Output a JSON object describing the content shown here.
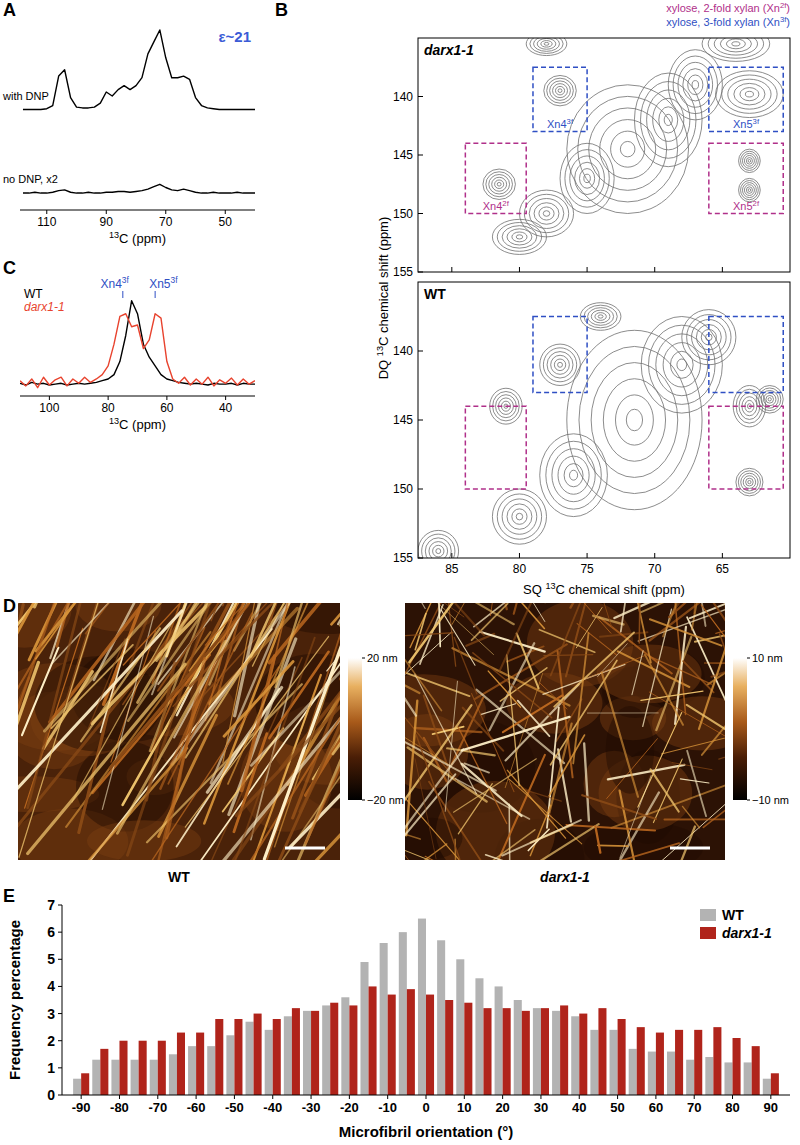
{
  "chart_data": [
    {
      "type": "line",
      "panel_label": "A",
      "annotation": "ε~21",
      "x_label": {
        "sup": "13",
        "post": "C (ppm)"
      },
      "x": [
        118,
        116,
        114,
        112,
        110,
        108,
        106,
        104,
        102,
        100,
        98,
        96,
        94,
        92,
        90,
        88,
        86,
        84,
        82,
        80,
        78,
        76,
        74,
        72,
        70,
        68,
        66,
        64,
        62,
        60,
        58,
        56,
        54,
        52,
        50,
        48,
        46,
        44,
        42,
        40
      ],
      "xlim": [
        119,
        40
      ],
      "xticks": [
        110,
        90,
        70,
        50
      ],
      "ylim": [
        0,
        2.3
      ],
      "tick_labels": "x",
      "series": [
        {
          "name": "with DNP",
          "color": "#000000",
          "values": [
            1.2,
            1.2,
            1.2,
            1.2,
            1.21,
            1.25,
            1.62,
            1.7,
            1.35,
            1.23,
            1.22,
            1.22,
            1.23,
            1.28,
            1.42,
            1.37,
            1.45,
            1.5,
            1.45,
            1.5,
            1.6,
            1.9,
            2.05,
            2.2,
            1.85,
            1.6,
            1.6,
            1.62,
            1.58,
            1.35,
            1.25,
            1.22,
            1.21,
            1.2,
            1.2,
            1.2,
            1.2,
            1.2,
            1.2,
            1.2
          ]
        },
        {
          "name": "no DNP, x2",
          "color": "#000000",
          "values": [
            0.15,
            0.15,
            0.16,
            0.15,
            0.15,
            0.16,
            0.18,
            0.19,
            0.16,
            0.15,
            0.15,
            0.16,
            0.15,
            0.15,
            0.16,
            0.16,
            0.17,
            0.17,
            0.16,
            0.17,
            0.18,
            0.2,
            0.23,
            0.26,
            0.22,
            0.19,
            0.18,
            0.2,
            0.18,
            0.16,
            0.15,
            0.15,
            0.16,
            0.15,
            0.15,
            0.15,
            0.16,
            0.15,
            0.15,
            0.15
          ]
        }
      ]
    },
    {
      "type": "line",
      "panel_label": "C",
      "x_label": {
        "sup": "13",
        "post": "C (ppm)"
      },
      "x": [
        110,
        108,
        106,
        104,
        102,
        100,
        98,
        96,
        94,
        92,
        90,
        88,
        86,
        84,
        82,
        80,
        78,
        76,
        74,
        72,
        70,
        68,
        66,
        64,
        62,
        60,
        58,
        56,
        54,
        52,
        50,
        48,
        46,
        44,
        42,
        40,
        38,
        36,
        34,
        32,
        30
      ],
      "xlim": [
        110,
        30
      ],
      "xticks": [
        100,
        80,
        60,
        40
      ],
      "ylim": [
        -0.05,
        1.1
      ],
      "tick_labels": "x",
      "legend": "upper left",
      "series": [
        {
          "name": "WT",
          "color": "#000000",
          "values": [
            0.05,
            0.03,
            0.06,
            0.04,
            0.05,
            0.03,
            0.04,
            0.05,
            0.03,
            0.04,
            0.05,
            0.04,
            0.05,
            0.06,
            0.08,
            0.1,
            0.15,
            0.3,
            0.6,
            1.0,
            0.85,
            0.5,
            0.35,
            0.25,
            0.15,
            0.1,
            0.08,
            0.06,
            0.05,
            0.04,
            0.05,
            0.04,
            0.03,
            0.05,
            0.04,
            0.04,
            0.05,
            0.03,
            0.05,
            0.04,
            0.04
          ]
        },
        {
          "name": "darx1-1",
          "color": "#e8432e",
          "values": [
            0.08,
            0.02,
            0.1,
            0.0,
            0.12,
            0.03,
            0.09,
            0.12,
            0.02,
            0.1,
            0.05,
            0.12,
            0.06,
            0.1,
            0.15,
            0.25,
            0.5,
            0.82,
            0.85,
            0.7,
            0.72,
            0.45,
            0.55,
            0.85,
            0.8,
            0.3,
            0.1,
            0.05,
            0.12,
            0.03,
            0.1,
            0.04,
            0.12,
            0.02,
            0.09,
            0.05,
            0.11,
            0.03,
            0.1,
            0.04,
            0.08
          ]
        }
      ],
      "annotations": [
        {
          "text": "Xn4",
          "sup": "3f",
          "x": 75,
          "color": "#2f4fc4"
        },
        {
          "text": "Xn5",
          "sup": "3f",
          "x": 64,
          "color": "#2f4fc4"
        }
      ]
    },
    {
      "type": "contour",
      "panel_label": "B",
      "title": "darx1-1",
      "tick_labels": "y",
      "key": [
        {
          "text": "xylose, 2-fold xylan (Xn",
          "sup": "2f",
          "post": ")",
          "color": "#b0308a"
        },
        {
          "text": "xylose, 3-fold xylan (Xn",
          "sup": "3f",
          "post": ")",
          "color": "#2f4fc4"
        }
      ],
      "xlim": [
        87.5,
        60
      ],
      "xticks": [
        85,
        80,
        75,
        70,
        65
      ],
      "ylim": [
        135,
        155
      ],
      "yticks": [
        140,
        145,
        150,
        155
      ],
      "peaks": {
        "x": [
          72,
          69,
          75,
          78,
          67,
          80,
          77,
          81.5,
          63,
          63,
          63,
          64,
          78
        ],
        "y": [
          144.5,
          142,
          147,
          150,
          139,
          152,
          139.5,
          147.5,
          139.8,
          148,
          145.5,
          135.5,
          135.5
        ],
        "widths": [
          4.5,
          2.5,
          2,
          2,
          2,
          2,
          1.2,
          1.2,
          2.5,
          0.8,
          0.8,
          2.5,
          1.5
        ],
        "heights": [
          5.5,
          4,
          3,
          2,
          3,
          1.5,
          1.3,
          1.3,
          2,
          1,
          1,
          1.5,
          1
        ]
      },
      "boxes": [
        {
          "label": "Xn4",
          "sup": "3f",
          "color": "#2f4fc4",
          "x": [
            79,
            75
          ],
          "y": [
            137.5,
            143
          ]
        },
        {
          "label": "Xn4",
          "sup": "2f",
          "color": "#b0308a",
          "x": [
            84,
            79.5
          ],
          "y": [
            144,
            150
          ]
        },
        {
          "label": "Xn5",
          "sup": "3f",
          "color": "#2f4fc4",
          "x": [
            66,
            60.5
          ],
          "y": [
            137.5,
            143
          ]
        },
        {
          "label": "Xn5",
          "sup": "2f",
          "color": "#b0308a",
          "x": [
            66,
            60.5
          ],
          "y": [
            144,
            150
          ]
        }
      ]
    },
    {
      "type": "contour",
      "title": "WT",
      "x_label": {
        "pre": "SQ ",
        "sup": "13",
        "post": "C chemical shift (ppm)"
      },
      "y_label": {
        "pre": "DQ ",
        "sup": "13",
        "post": "C chemical shift (ppm)"
      },
      "xlim": [
        87.5,
        60
      ],
      "xticks": [
        85,
        80,
        75,
        70,
        65
      ],
      "ylim": [
        135,
        155
      ],
      "yticks": [
        140,
        145,
        150,
        155
      ],
      "peaks": {
        "x": [
          71.5,
          68,
          76,
          80,
          66,
          81,
          77,
          63,
          61.5,
          63,
          86,
          74
        ],
        "y": [
          145,
          141,
          149,
          152,
          139,
          144,
          141,
          144,
          143.5,
          149.5,
          154.5,
          137.5
        ],
        "widths": [
          5,
          3,
          2.5,
          2,
          2,
          1.2,
          1.5,
          1.2,
          1,
          1,
          1.5,
          1.5
        ],
        "heights": [
          6.5,
          3.5,
          3,
          2,
          2,
          1.3,
          1.5,
          1.5,
          1,
          1,
          1.5,
          1
        ]
      },
      "boxes": [
        {
          "color": "#2f4fc4",
          "x": [
            79,
            75
          ],
          "y": [
            137.5,
            143
          ]
        },
        {
          "color": "#b0308a",
          "x": [
            84,
            79.5
          ],
          "y": [
            144,
            150
          ]
        },
        {
          "color": "#2f4fc4",
          "x": [
            66,
            60.5
          ],
          "y": [
            137.5,
            143
          ]
        },
        {
          "color": "#b0308a",
          "x": [
            66,
            60.5
          ],
          "y": [
            144,
            150
          ]
        }
      ]
    },
    {
      "type": "image",
      "panel_label": "D",
      "title": "WT",
      "colorbar": {
        "range": [
          -20,
          20
        ],
        "ticks": [
          {
            "value": 20,
            "label": "20 nm"
          },
          {
            "value": -20,
            "label": "−20 nm"
          }
        ]
      }
    },
    {
      "type": "image",
      "title": "darx1-1",
      "colorbar": {
        "range": [
          -10,
          10
        ],
        "ticks": [
          {
            "value": 10,
            "label": "10 nm"
          },
          {
            "value": -10,
            "label": "−10 nm"
          }
        ]
      }
    },
    {
      "type": "bar",
      "panel_label": "E",
      "x_label": "Microfibril orientation (°)",
      "y_label": "Frequency percentage",
      "x": [
        -90,
        -85,
        -80,
        -75,
        -70,
        -65,
        -60,
        -55,
        -50,
        -45,
        -40,
        -35,
        -30,
        -25,
        -20,
        -15,
        -10,
        -5,
        0,
        5,
        10,
        15,
        20,
        25,
        30,
        35,
        40,
        45,
        50,
        55,
        60,
        65,
        70,
        75,
        80,
        85,
        90
      ],
      "xlim": [
        -95,
        95
      ],
      "xticks": [
        -90,
        -80,
        -70,
        -60,
        -50,
        -40,
        -30,
        -20,
        -10,
        0,
        10,
        20,
        30,
        40,
        50,
        60,
        70,
        80,
        90
      ],
      "ylim": [
        0,
        7
      ],
      "yticks": [
        0,
        1,
        2,
        3,
        4,
        5,
        6,
        7
      ],
      "legend": "upper right",
      "series": [
        {
          "name": "WT",
          "color": "#b3b3b3",
          "values": [
            0.6,
            1.3,
            1.3,
            1.3,
            1.3,
            1.5,
            1.8,
            1.8,
            2.2,
            2.7,
            2.4,
            2.9,
            3.1,
            3.3,
            3.6,
            4.9,
            5.6,
            6.0,
            6.5,
            5.7,
            5.0,
            4.3,
            4.0,
            3.5,
            3.2,
            3.1,
            2.9,
            2.4,
            2.4,
            1.7,
            1.6,
            1.6,
            1.3,
            1.4,
            1.2,
            1.2,
            0.6
          ]
        },
        {
          "name": "darx1-1",
          "color": "#b0241b",
          "values": [
            0.8,
            1.7,
            2.0,
            2.0,
            2.0,
            2.3,
            2.3,
            2.8,
            2.8,
            3.0,
            2.8,
            3.2,
            3.1,
            3.4,
            3.3,
            4.0,
            3.7,
            3.9,
            3.7,
            3.5,
            3.4,
            3.2,
            3.2,
            3.1,
            3.2,
            3.3,
            3.0,
            3.2,
            2.8,
            2.5,
            2.3,
            2.4,
            2.4,
            2.5,
            2.1,
            1.8,
            0.8
          ]
        }
      ]
    }
  ]
}
